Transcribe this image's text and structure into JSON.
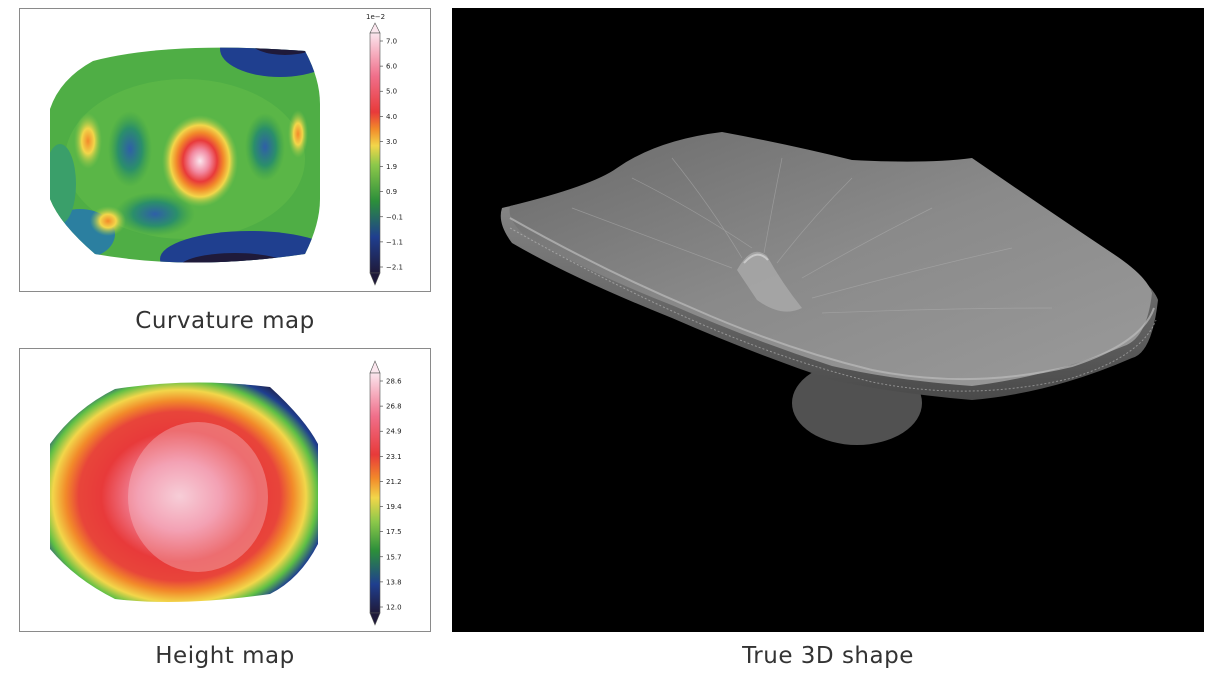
{
  "figure": {
    "curvature_panel": {
      "caption": "Curvature map",
      "colorbar": {
        "multiplier": "1e−2",
        "ticks": [
          "7.0",
          "6.0",
          "5.0",
          "4.0",
          "3.0",
          "1.9",
          "0.9",
          "−0.1",
          "−1.1",
          "−2.1"
        ]
      }
    },
    "height_panel": {
      "caption": "Height map",
      "colorbar": {
        "ticks": [
          "28.6",
          "26.8",
          "24.9",
          "23.1",
          "21.2",
          "19.4",
          "17.5",
          "15.7",
          "13.8",
          "12.0"
        ]
      }
    },
    "shape_panel": {
      "caption": "True 3D shape"
    },
    "colormap": [
      "#1f1a3a",
      "#1f3f8f",
      "#2c8f3a",
      "#5fbf45",
      "#b8d85a",
      "#f2d64a",
      "#f28a2a",
      "#e83a3a",
      "#f06f8a",
      "#f7cdd8",
      "#fbe6ee"
    ]
  }
}
